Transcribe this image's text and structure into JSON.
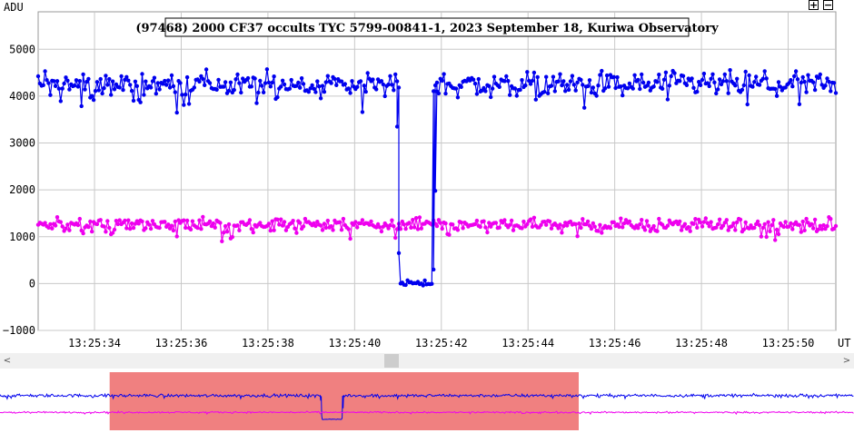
{
  "chart_data": {
    "type": "line",
    "title": "(97468) 2000 CF37 occults TYC 5799-00841-1, 2023 September 18, Kuriwa Observatory",
    "ylabel": "ADU",
    "xlabel": "UT",
    "x_unit": "seconds after 13:25:00 UT",
    "xlim": [
      32.7,
      51.1
    ],
    "ylim": [
      -1000,
      5800
    ],
    "x_ticks": [
      "13:25:34",
      "13:25:36",
      "13:25:38",
      "13:25:40",
      "13:25:42",
      "13:25:44",
      "13:25:46",
      "13:25:48",
      "13:25:50"
    ],
    "x_tick_values": [
      34,
      36,
      38,
      40,
      42,
      44,
      46,
      48,
      50
    ],
    "y_ticks": [
      "5000",
      "4000",
      "3000",
      "2000",
      "1000",
      "0",
      "−1000"
    ],
    "y_tick_values": [
      5000,
      4000,
      3000,
      2000,
      1000,
      0,
      -1000
    ],
    "grid": true,
    "sample_interval_s": 0.04,
    "series": [
      {
        "color": "#0000ee",
        "baseline": 4250,
        "scatter": 250,
        "event": {
          "disappear": 41.0,
          "reappear": 41.9,
          "bottom": 0,
          "transition_points": [
            {
              "x": 40.98,
              "y": 3350
            },
            {
              "x": 41.02,
              "y": 650
            },
            {
              "x": 41.82,
              "y": 300
            },
            {
              "x": 41.86,
              "y": 1980
            },
            {
              "x": 41.9,
              "y": 4100
            }
          ]
        }
      },
      {
        "color": "#ee00ee",
        "baseline": 1250,
        "scatter": 130
      }
    ]
  },
  "overview": {
    "selection_color": "#f08080",
    "selection_range": [
      32.7,
      51.1
    ],
    "full_range": [
      28.4,
      61.9
    ]
  },
  "controls": {
    "zoom_in": "+",
    "zoom_out": "−",
    "scroll_left": "<",
    "scroll_right": ">"
  }
}
